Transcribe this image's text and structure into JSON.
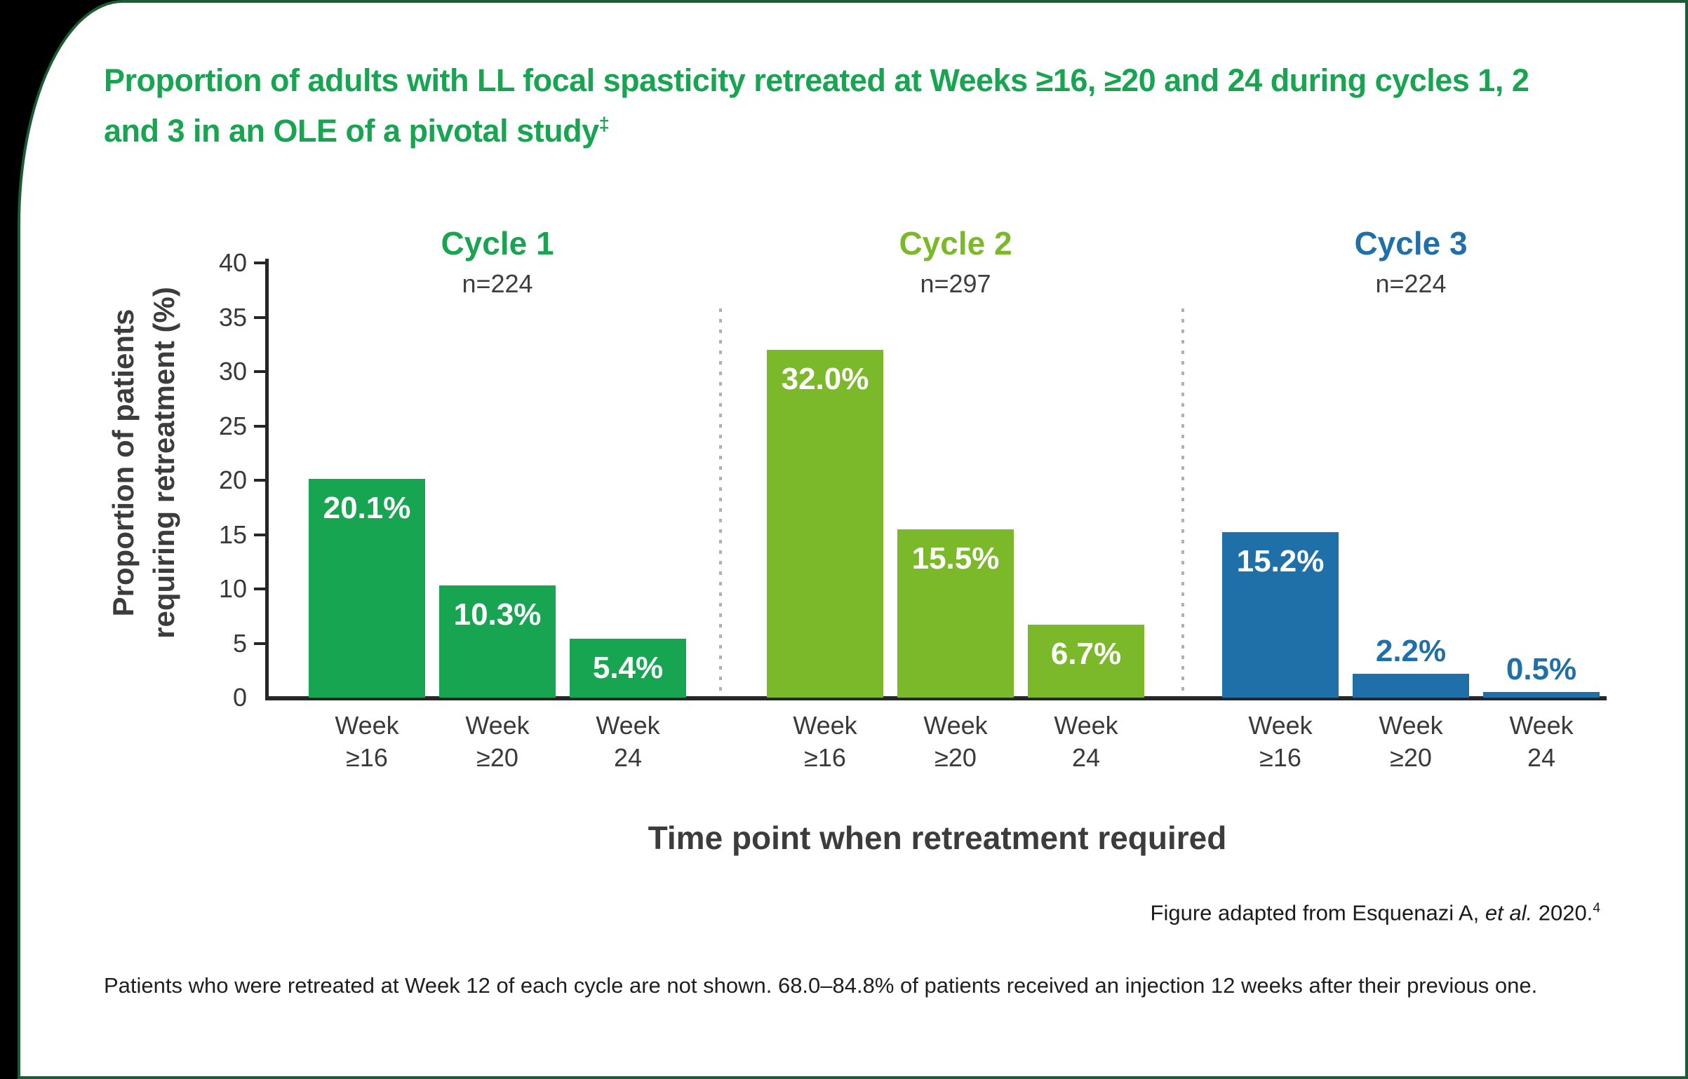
{
  "frame": {
    "background": "#000000",
    "card_background": "#ffffff",
    "card_border_color": "#1A5C33"
  },
  "title": {
    "line1": "Proportion of adults with LL focal spasticity retreated at Weeks ≥16, ≥20 and 24 during cycles 1, 2",
    "line2": "and 3 in an OLE of a pivotal study",
    "sup": "‡",
    "color": "#18A551"
  },
  "chart_data": {
    "type": "bar",
    "title": "Proportion of adults with LL focal spasticity retreated at Weeks ≥16, ≥20 and 24 during cycles 1, 2 and 3 in an OLE of a pivotal study‡",
    "xlabel": "Time point when retreatment required",
    "ylabel": "Proportion of patients requiring retreatment (%)",
    "ylabel_lines": [
      "Proportion of patients",
      "requiring retreatment (%)"
    ],
    "ylim": [
      0,
      40
    ],
    "yticks": [
      0,
      5,
      10,
      15,
      20,
      25,
      30,
      35,
      40
    ],
    "grid": false,
    "legend_position": "none",
    "categories": [
      "Week\n≥16",
      "Week\n≥20",
      "Week\n24"
    ],
    "series": [
      {
        "name": "Cycle 1",
        "n_label": "n=224",
        "color": "#18A551",
        "values": [
          20.1,
          10.3,
          5.4
        ],
        "value_labels": [
          "20.1%",
          "10.3%",
          "5.4%"
        ]
      },
      {
        "name": "Cycle 2",
        "n_label": "n=297",
        "color": "#7BB92A",
        "values": [
          32.0,
          15.5,
          6.7
        ],
        "value_labels": [
          "32.0%",
          "15.5%",
          "6.7%"
        ]
      },
      {
        "name": "Cycle 3",
        "n_label": "n=224",
        "color": "#1F6FA8",
        "values": [
          15.2,
          2.2,
          0.5
        ],
        "value_labels": [
          "15.2%",
          "2.2%",
          "0.5%"
        ]
      }
    ]
  },
  "footer": {
    "credit_prefix": "Figure adapted from Esquenazi A, ",
    "credit_italic": "et al.",
    "credit_suffix": " 2020.",
    "credit_sup": "4",
    "note": "Patients who were retreated at Week 12 of each cycle are not shown. 68.0–84.8% of patients received an injection 12 weeks after their previous one."
  }
}
